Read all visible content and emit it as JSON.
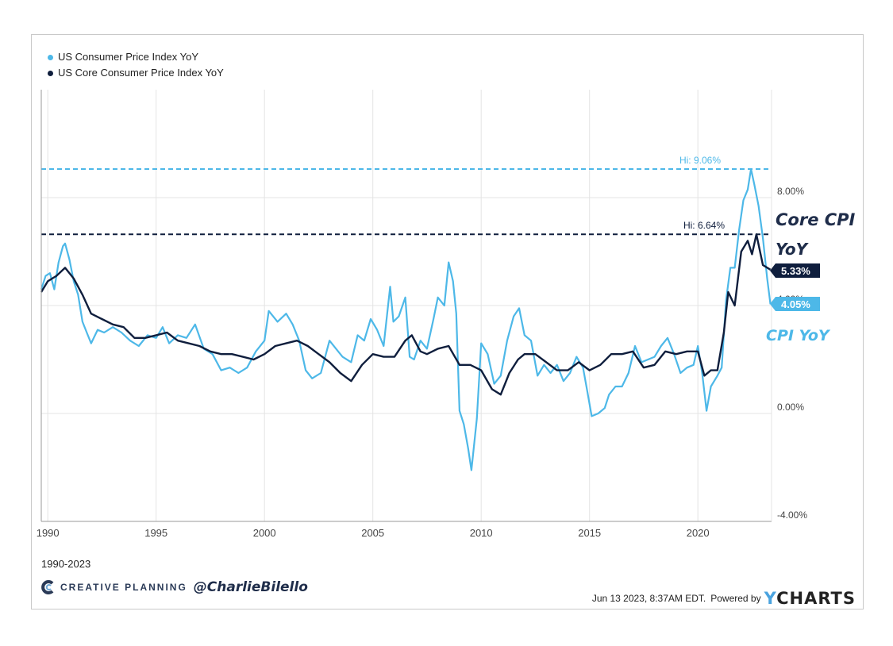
{
  "legend": {
    "cpi": "US Consumer Price Index YoY",
    "core": "US Core Consumer Price Index YoY"
  },
  "colors": {
    "cpi": "#4db8e8",
    "core": "#0f1e3d",
    "grid": "#e4e4e4"
  },
  "annotations": {
    "hi_cpi": "Hi: 9.06%",
    "hi_core": "Hi: 6.64%",
    "last_core": "5.33%",
    "last_cpi": "4.05%",
    "hand_core_line1": "Core CPI",
    "hand_core_line2": "YoY",
    "hand_cpi": "CPI YoY"
  },
  "range_label": "1990-2023",
  "brand": {
    "company": "CREATIVE PLANNING",
    "handle": "@CharlieBilello"
  },
  "footer": {
    "timestamp": "Jun 13 2023, 8:37AM EDT.",
    "powered_by": "Powered by",
    "ycharts_y": "Y",
    "ycharts_rest": "CHARTS"
  },
  "chart_data": {
    "type": "line",
    "xlim": [
      1989.7,
      2023.4
    ],
    "ylim": [
      -4,
      12
    ],
    "x_ticks": [
      {
        "value": 1990,
        "label": "1990"
      },
      {
        "value": 1995,
        "label": "1995"
      },
      {
        "value": 2000,
        "label": "2000"
      },
      {
        "value": 2005,
        "label": "2005"
      },
      {
        "value": 2010,
        "label": "2010"
      },
      {
        "value": 2015,
        "label": "2015"
      },
      {
        "value": 2020,
        "label": "2020"
      }
    ],
    "y_ticks": [
      {
        "value": 8,
        "label": "8.00%"
      },
      {
        "value": 4,
        "label": "4.00%"
      },
      {
        "value": 0,
        "label": "0.00%"
      },
      {
        "value": -4,
        "label": "-4.00%"
      }
    ],
    "reference_lines": [
      {
        "series": "cpi",
        "value": 9.06
      },
      {
        "series": "core",
        "value": 6.64
      }
    ],
    "series": [
      {
        "key": "cpi",
        "name": "US Consumer Price Index YoY",
        "x": [
          1989.7,
          1989.9,
          1990.1,
          1990.3,
          1990.5,
          1990.7,
          1990.8,
          1991.0,
          1991.2,
          1991.4,
          1991.6,
          1991.8,
          1992.0,
          1992.3,
          1992.6,
          1993.0,
          1993.4,
          1993.8,
          1994.2,
          1994.6,
          1995.0,
          1995.3,
          1995.6,
          1996.0,
          1996.4,
          1996.8,
          1997.2,
          1997.6,
          1998.0,
          1998.4,
          1998.8,
          1999.2,
          1999.6,
          2000.0,
          2000.2,
          2000.6,
          2001.0,
          2001.3,
          2001.6,
          2001.9,
          2002.2,
          2002.6,
          2003.0,
          2003.3,
          2003.6,
          2004.0,
          2004.3,
          2004.6,
          2004.9,
          2005.2,
          2005.5,
          2005.8,
          2005.95,
          2006.2,
          2006.5,
          2006.7,
          2006.9,
          2007.2,
          2007.5,
          2007.8,
          2008.0,
          2008.3,
          2008.5,
          2008.7,
          2008.85,
          2009.0,
          2009.2,
          2009.4,
          2009.55,
          2009.8,
          2010.0,
          2010.3,
          2010.6,
          2010.9,
          2011.2,
          2011.5,
          2011.75,
          2012.0,
          2012.3,
          2012.6,
          2012.9,
          2013.2,
          2013.5,
          2013.8,
          2014.1,
          2014.4,
          2014.7,
          2014.9,
          2015.1,
          2015.4,
          2015.7,
          2015.9,
          2016.2,
          2016.5,
          2016.8,
          2017.1,
          2017.4,
          2017.7,
          2018.0,
          2018.3,
          2018.6,
          2018.9,
          2019.2,
          2019.5,
          2019.8,
          2020.0,
          2020.2,
          2020.4,
          2020.6,
          2020.9,
          2021.1,
          2021.3,
          2021.5,
          2021.7,
          2021.9,
          2022.1,
          2022.3,
          2022.45,
          2022.6,
          2022.8,
          2023.0,
          2023.2,
          2023.35
        ],
        "values": [
          4.6,
          5.1,
          5.2,
          4.6,
          5.6,
          6.2,
          6.3,
          5.7,
          4.9,
          4.4,
          3.4,
          3.0,
          2.6,
          3.1,
          3.0,
          3.2,
          3.0,
          2.7,
          2.5,
          2.9,
          2.8,
          3.2,
          2.6,
          2.9,
          2.8,
          3.3,
          2.4,
          2.2,
          1.6,
          1.7,
          1.5,
          1.7,
          2.3,
          2.7,
          3.8,
          3.4,
          3.7,
          3.3,
          2.7,
          1.6,
          1.3,
          1.5,
          2.7,
          2.4,
          2.1,
          1.9,
          2.9,
          2.7,
          3.5,
          3.1,
          2.5,
          4.7,
          3.4,
          3.6,
          4.3,
          2.1,
          2.0,
          2.7,
          2.4,
          3.5,
          4.3,
          4.0,
          5.6,
          4.9,
          3.7,
          0.1,
          -0.4,
          -1.3,
          -2.1,
          -0.2,
          2.6,
          2.2,
          1.1,
          1.4,
          2.7,
          3.6,
          3.9,
          2.9,
          2.7,
          1.4,
          1.8,
          1.5,
          1.8,
          1.2,
          1.5,
          2.1,
          1.7,
          0.8,
          -0.1,
          0.0,
          0.2,
          0.7,
          1.0,
          1.0,
          1.5,
          2.5,
          1.9,
          2.0,
          2.1,
          2.5,
          2.8,
          2.2,
          1.5,
          1.7,
          1.8,
          2.5,
          1.5,
          0.1,
          1.0,
          1.4,
          1.7,
          4.2,
          5.4,
          5.4,
          6.8,
          7.9,
          8.3,
          9.06,
          8.5,
          7.7,
          6.5,
          5.0,
          4.05
        ]
      },
      {
        "key": "core",
        "name": "US Core Consumer Price Index YoY",
        "x": [
          1989.7,
          1990.0,
          1990.4,
          1990.8,
          1991.2,
          1991.6,
          1992.0,
          1992.5,
          1993.0,
          1993.5,
          1994.0,
          1994.5,
          1995.0,
          1995.5,
          1996.0,
          1996.5,
          1997.0,
          1997.5,
          1998.0,
          1998.5,
          1999.0,
          1999.5,
          2000.0,
          2000.5,
          2001.0,
          2001.5,
          2002.0,
          2002.5,
          2003.0,
          2003.5,
          2004.0,
          2004.5,
          2005.0,
          2005.5,
          2006.0,
          2006.5,
          2006.8,
          2007.2,
          2007.5,
          2008.0,
          2008.5,
          2009.0,
          2009.5,
          2010.0,
          2010.5,
          2010.9,
          2011.3,
          2011.7,
          2012.0,
          2012.5,
          2013.0,
          2013.5,
          2014.0,
          2014.5,
          2015.0,
          2015.5,
          2016.0,
          2016.5,
          2017.0,
          2017.5,
          2018.0,
          2018.5,
          2019.0,
          2019.5,
          2020.0,
          2020.3,
          2020.6,
          2020.9,
          2021.2,
          2021.4,
          2021.7,
          2022.0,
          2022.3,
          2022.5,
          2022.7,
          2023.0,
          2023.35
        ],
        "values": [
          4.5,
          4.9,
          5.1,
          5.4,
          5.0,
          4.4,
          3.7,
          3.5,
          3.3,
          3.2,
          2.8,
          2.8,
          2.9,
          3.0,
          2.7,
          2.6,
          2.5,
          2.3,
          2.2,
          2.2,
          2.1,
          2.0,
          2.2,
          2.5,
          2.6,
          2.7,
          2.5,
          2.2,
          1.9,
          1.5,
          1.2,
          1.8,
          2.2,
          2.1,
          2.1,
          2.7,
          2.9,
          2.3,
          2.2,
          2.4,
          2.5,
          1.8,
          1.8,
          1.6,
          0.9,
          0.7,
          1.5,
          2.0,
          2.2,
          2.2,
          1.9,
          1.6,
          1.6,
          1.9,
          1.6,
          1.8,
          2.2,
          2.2,
          2.3,
          1.7,
          1.8,
          2.3,
          2.2,
          2.3,
          2.3,
          1.4,
          1.6,
          1.6,
          3.0,
          4.5,
          4.0,
          6.0,
          6.4,
          5.9,
          6.64,
          5.5,
          5.33
        ]
      }
    ]
  }
}
